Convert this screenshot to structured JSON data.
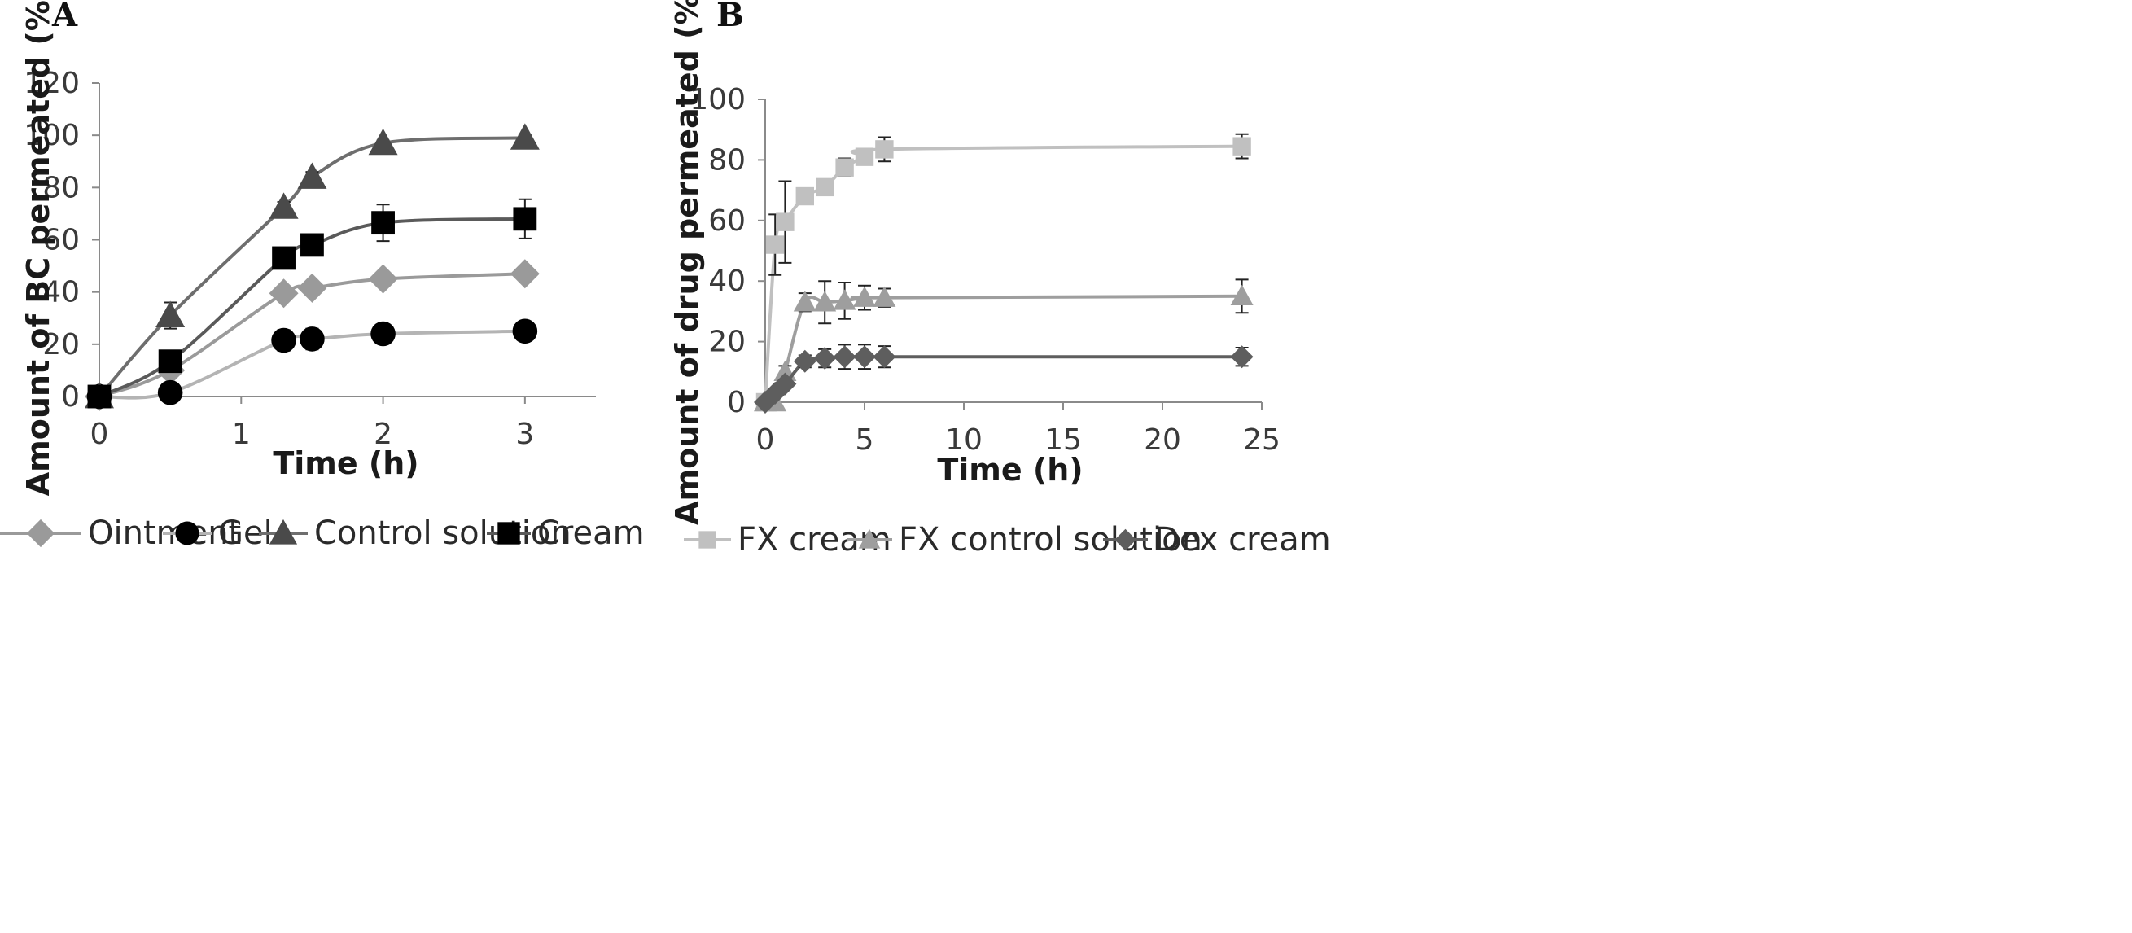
{
  "chart_data": [
    {
      "type": "line",
      "panel_label": "A",
      "title": "",
      "xlabel": "Time (h)",
      "ylabel": "Amount of BC permeated (%)",
      "xlim": [
        0,
        3.5
      ],
      "ylim": [
        0,
        120
      ],
      "xticks": [
        0,
        1,
        2,
        3
      ],
      "yticks": [
        0,
        20,
        40,
        60,
        80,
        100,
        120
      ],
      "grid": false,
      "legend_position": "bottom",
      "series": [
        {
          "name": "Ointment",
          "color": "#9a9a9a",
          "marker": "diamond",
          "x": [
            0,
            0.5,
            1.3,
            1.5,
            2,
            3
          ],
          "y": [
            0,
            10,
            39.5,
            41.5,
            45,
            47
          ],
          "err": [
            0,
            0,
            1,
            1,
            1,
            1
          ]
        },
        {
          "name": "Gel",
          "color": "#b4b4b4",
          "marker": "circle",
          "marker_color": "#000000",
          "x": [
            0,
            0.5,
            1.3,
            1.5,
            2,
            3
          ],
          "y": [
            0,
            1.5,
            21.5,
            22,
            24,
            25
          ],
          "err": [
            0,
            0,
            4,
            4,
            3,
            3
          ]
        },
        {
          "name": "Control solution",
          "color": "#6e6e6e",
          "marker": "triangle",
          "marker_color": "#4a4a4a",
          "x": [
            0,
            0.5,
            1.3,
            1.5,
            2,
            3
          ],
          "y": [
            0,
            31,
            72.5,
            84,
            97,
            99
          ],
          "err": [
            0,
            5,
            2,
            2,
            1,
            1
          ]
        },
        {
          "name": "Cream",
          "color": "#5a5a5a",
          "marker": "square",
          "marker_color": "#000000",
          "x": [
            0,
            0.5,
            1.3,
            1.5,
            2,
            3
          ],
          "y": [
            0,
            13.5,
            53,
            58,
            66.5,
            68
          ],
          "err": [
            0,
            2,
            4,
            2,
            7,
            7.5
          ]
        }
      ]
    },
    {
      "type": "line",
      "panel_label": "B",
      "title": "",
      "xlabel": "Time (h)",
      "ylabel": "Amount of drug permeated (%)",
      "xlim": [
        0,
        25
      ],
      "ylim": [
        0,
        100
      ],
      "xticks": [
        0,
        5,
        10,
        15,
        20,
        25
      ],
      "yticks": [
        0,
        20,
        40,
        60,
        80,
        100
      ],
      "grid": false,
      "legend_position": "bottom",
      "series": [
        {
          "name": "FX cream",
          "color": "#c0c0c0",
          "marker": "square",
          "x": [
            0,
            0.5,
            1,
            2,
            3,
            4,
            5,
            6,
            24
          ],
          "y": [
            0,
            52,
            59.5,
            68,
            71,
            77.5,
            81,
            83.5,
            84.5
          ],
          "err": [
            0,
            10,
            13.5,
            1,
            2,
            3,
            1,
            4,
            4
          ]
        },
        {
          "name": "FX control solution",
          "color": "#9e9e9e",
          "marker": "triangle",
          "x": [
            0,
            0.5,
            1,
            2,
            3,
            4,
            5,
            6,
            24
          ],
          "y": [
            0,
            0,
            10,
            33,
            33,
            33.5,
            34.5,
            34.5,
            35
          ],
          "err": [
            0,
            0,
            2,
            3,
            7,
            6,
            4,
            3,
            5.5
          ]
        },
        {
          "name": "Dex cream",
          "color": "#5e5e5e",
          "marker": "diamond",
          "x": [
            0,
            0.5,
            1,
            2,
            3,
            4,
            5,
            6,
            24
          ],
          "y": [
            0,
            3,
            6,
            13.5,
            14.5,
            15,
            15,
            15,
            15
          ],
          "err": [
            0,
            1,
            1,
            2,
            3,
            4,
            4,
            3.5,
            3
          ]
        }
      ]
    }
  ]
}
